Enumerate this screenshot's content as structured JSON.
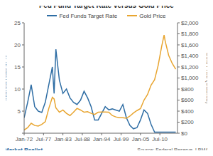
{
  "chart_data": {
    "type": "line",
    "title": "Fed Fund Target Rate versus Gold Price",
    "ylabel": "Interest Rate in %",
    "y2label": "Gold Price (USD/oz)",
    "annotations": [
      "Market Realist",
      "Source: Federal Reserve, LBMA"
    ],
    "x": [
      1972,
      1973,
      1974,
      1975,
      1976,
      1977,
      1978,
      1979,
      1980,
      1980.5,
      1981,
      1982,
      1983,
      1984,
      1985,
      1986,
      1987,
      1988,
      1989,
      1990,
      1991,
      1992,
      1993,
      1994,
      1995,
      1996,
      1997,
      1998,
      1999,
      2000,
      2001,
      2002,
      2003,
      2004,
      2005,
      2006,
      2007,
      2008,
      2009,
      2010,
      2011,
      2011.7,
      2012,
      2013,
      2014,
      2015
    ],
    "xlim": [
      1972,
      2015.5
    ],
    "xticks": [
      {
        "value": 1972,
        "label": "Jan-72"
      },
      {
        "value": 1977.5,
        "label": "Jul-77"
      },
      {
        "value": 1983,
        "label": "Jan-83"
      },
      {
        "value": 1988.5,
        "label": "Jul-88"
      },
      {
        "value": 1994,
        "label": "Jan-94"
      },
      {
        "value": 1999.5,
        "label": "Jul-99"
      },
      {
        "value": 2005,
        "label": "Jan-05"
      },
      {
        "value": 2010.5,
        "label": "Jul-10"
      }
    ],
    "ylim": [
      0,
      25
    ],
    "yticks": [
      0,
      5,
      10,
      15,
      20,
      25
    ],
    "y2lim": [
      0,
      2000
    ],
    "y2ticks": [
      {
        "value": 0,
        "label": "$0"
      },
      {
        "value": 200,
        "label": "$200"
      },
      {
        "value": 400,
        "label": "$400"
      },
      {
        "value": 600,
        "label": "$600"
      },
      {
        "value": 800,
        "label": "$800"
      },
      {
        "value": 1000,
        "label": "$1,000"
      },
      {
        "value": 1200,
        "label": "$1,200"
      },
      {
        "value": 1400,
        "label": "$1,400"
      },
      {
        "value": 1600,
        "label": "$1,600"
      },
      {
        "value": 1800,
        "label": "$1,800"
      },
      {
        "value": 2000,
        "label": "$2,000"
      }
    ],
    "grid": false,
    "legend": "top",
    "series": [
      {
        "name": "Fed Funds Target Rate",
        "color": "#2e6da4",
        "values": [
          3.5,
          7,
          11,
          6,
          5,
          4.7,
          7,
          11,
          15,
          9,
          19,
          12,
          9,
          10,
          8,
          7,
          6.5,
          7.5,
          9.5,
          8,
          6,
          3,
          3,
          4.5,
          6,
          5.3,
          5.5,
          5.25,
          5,
          6.5,
          3.5,
          1.75,
          1,
          1.25,
          3,
          5.25,
          4.5,
          2,
          0.25,
          0.25,
          0.25,
          0.25,
          0.25,
          0.25,
          0.25,
          0.25
        ]
      },
      {
        "name": "Gold Price",
        "color": "#e8a530",
        "axis": "y2",
        "values": [
          58,
          100,
          180,
          140,
          130,
          160,
          210,
          450,
          650,
          620,
          460,
          380,
          420,
          360,
          320,
          380,
          450,
          420,
          380,
          390,
          360,
          340,
          380,
          385,
          385,
          380,
          320,
          295,
          280,
          280,
          270,
          310,
          365,
          410,
          445,
          600,
          700,
          870,
          970,
          1225,
          1570,
          1780,
          1670,
          1410,
          1265,
          1160
        ]
      }
    ]
  }
}
